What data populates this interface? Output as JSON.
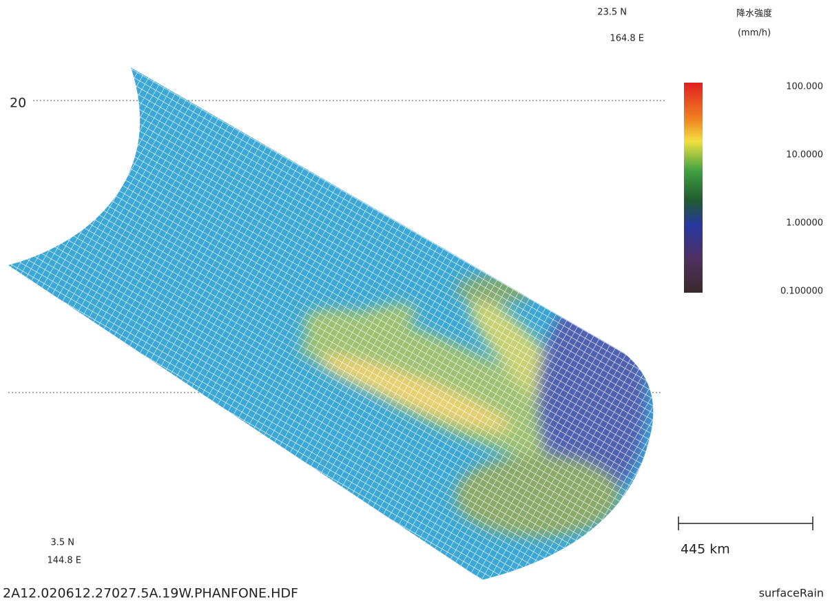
{
  "corner_top": {
    "lat": "23.5 N",
    "lon": "164.8 E"
  },
  "corner_bottom": {
    "lat": "3.5 N",
    "lon": "144.8 E"
  },
  "legend": {
    "title": "降水強度",
    "unit": "(mm/h)",
    "ticks": [
      "100.000",
      "10.0000",
      "1.00000",
      "0.100000"
    ]
  },
  "latitude_label": "20",
  "scale_bar": "445 km",
  "file_name": "2A12.020612.27027.5A.19W.PHANFONE.HDF",
  "variable": "surfaceRain"
}
